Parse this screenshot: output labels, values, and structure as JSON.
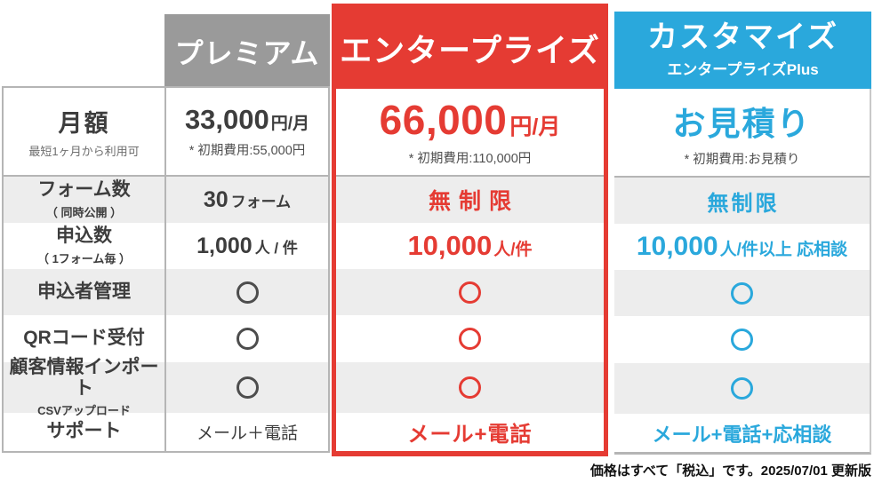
{
  "feature_column": {
    "monthly": {
      "label": "月額",
      "sub": "最短1ヶ月から利用可"
    },
    "forms": {
      "label": "フォーム数",
      "sub": "（ 同時公開 ）"
    },
    "applications": {
      "label": "申込数",
      "sub": "（ 1フォーム毎 ）"
    },
    "applicant_management": {
      "label": "申込者管理"
    },
    "qr_reception": {
      "label": "QRコード受付"
    },
    "customer_import": {
      "label": "顧客情報インポート",
      "sub": "CSVアップロード"
    },
    "support": {
      "label": "サポート"
    }
  },
  "plans": {
    "premium": {
      "name": "プレミアム",
      "monthly_price": "33,000",
      "monthly_unit": "円/月",
      "initial_fee": "* 初期費用:55,000円",
      "forms_value": "30",
      "forms_unit": "フォーム",
      "applications_value": "1,000",
      "applications_unit": "人 / 件",
      "applicant_management": "○",
      "qr_reception": "○",
      "customer_import": "○",
      "support_value": "メール＋電話"
    },
    "enterprise": {
      "name": "エンタープライズ",
      "monthly_price": "66,000",
      "monthly_unit": "円/月",
      "initial_fee": "* 初期費用:110,000円",
      "forms_value": "無制限",
      "applications_value": "10,000",
      "applications_unit": "人/件",
      "applicant_management": "○",
      "qr_reception": "○",
      "customer_import": "○",
      "support_value": "メール+電話"
    },
    "custom": {
      "name": "カスタマイズ",
      "subname": "エンタープライズPlus",
      "monthly_price": "お見積り",
      "initial_fee": "* 初期費用:お見積り",
      "forms_value": "無制限",
      "applications_value": "10,000",
      "applications_unit": "人/件以上 応相談",
      "applicant_management": "○",
      "qr_reception": "○",
      "customer_import": "○",
      "support_value": "メール+電話+応相談"
    }
  },
  "footnote": "価格はすべて「税込」です。2025/07/01 更新版",
  "colors": {
    "premium_header_bg": "#9a9a9a",
    "enterprise_accent": "#e53b33",
    "custom_accent": "#2aa8dc",
    "row_stripe_bg": "#ededed",
    "table_border": "#b5b5b5",
    "text_dark": "#3d3d3d"
  }
}
